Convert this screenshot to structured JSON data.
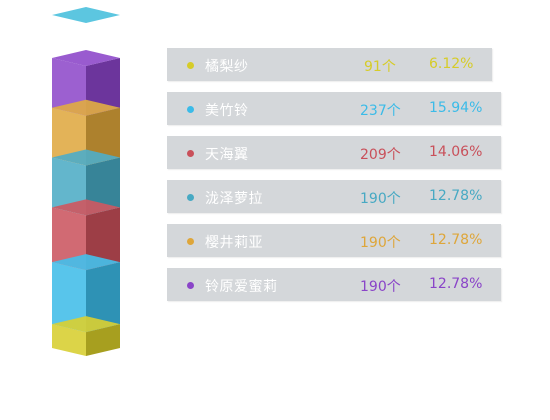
{
  "chart_data": {
    "type": "bar",
    "subtype": "stacked-3d-prism",
    "categories": [
      "橘梨纱",
      "美竹铃",
      "天海翼",
      "泷泽萝拉",
      "樱井莉亚",
      "铃原爱蜜莉"
    ],
    "values": [
      91,
      237,
      209,
      190,
      190,
      190
    ],
    "value_labels": [
      "91个",
      "237个",
      "209个",
      "190个",
      "190个",
      "190个"
    ],
    "percent_labels": [
      "6.12%",
      "15.94%",
      "14.06%",
      "12.78%",
      "12.78%",
      "12.78%"
    ],
    "colors": [
      "#d6cc28",
      "#3bbbe8",
      "#c9505a",
      "#47a9c3",
      "#dea63a",
      "#8a44c8"
    ],
    "stack_order_bottom_to_top": [
      "橘梨纱",
      "美竹铃",
      "天海翼",
      "泷泽萝拉",
      "樱井莉亚",
      "铃原爱蜜莉"
    ],
    "legend_position": "right"
  }
}
